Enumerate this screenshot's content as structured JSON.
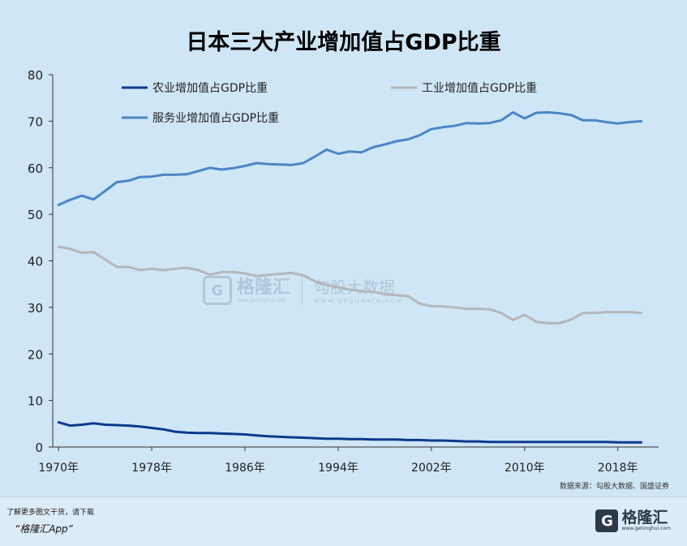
{
  "chart_data": {
    "type": "line",
    "title": "日本三大产业增加值占GDP比重",
    "xlabel": "",
    "ylabel": "",
    "x": [
      1970,
      1971,
      1972,
      1973,
      1974,
      1975,
      1976,
      1977,
      1978,
      1979,
      1980,
      1981,
      1982,
      1983,
      1984,
      1985,
      1986,
      1987,
      1988,
      1989,
      1990,
      1991,
      1992,
      1993,
      1994,
      1995,
      1996,
      1997,
      1998,
      1999,
      2000,
      2001,
      2002,
      2003,
      2004,
      2005,
      2006,
      2007,
      2008,
      2009,
      2010,
      2011,
      2012,
      2013,
      2014,
      2015,
      2016,
      2017,
      2018,
      2019,
      2020
    ],
    "x_ticks": [
      "1970年",
      "1978年",
      "1986年",
      "1994年",
      "2002年",
      "2010年",
      "2018年"
    ],
    "x_tick_values": [
      1970,
      1978,
      1986,
      1994,
      2002,
      2010,
      2018
    ],
    "xlim": [
      1969.5,
      2021.5
    ],
    "ylim": [
      0,
      80
    ],
    "y_ticks": [
      "0",
      "10",
      "20",
      "30",
      "40",
      "50",
      "60",
      "70",
      "80"
    ],
    "y_tick_values": [
      0,
      10,
      20,
      30,
      40,
      50,
      60,
      70,
      80
    ],
    "grid": false,
    "legend_position": "top",
    "series": [
      {
        "name": "农业增加值占GDP比重",
        "color": "#0a3a8c",
        "values": [
          5.3,
          4.6,
          4.8,
          5.1,
          4.8,
          4.7,
          4.6,
          4.4,
          4.1,
          3.8,
          3.3,
          3.1,
          3.0,
          3.0,
          2.9,
          2.8,
          2.7,
          2.5,
          2.3,
          2.2,
          2.1,
          2.0,
          1.9,
          1.8,
          1.8,
          1.7,
          1.7,
          1.6,
          1.6,
          1.6,
          1.5,
          1.5,
          1.4,
          1.4,
          1.3,
          1.2,
          1.2,
          1.1,
          1.1,
          1.1,
          1.1,
          1.1,
          1.1,
          1.1,
          1.1,
          1.1,
          1.1,
          1.1,
          1.0,
          1.0,
          1.0
        ]
      },
      {
        "name": "工业增加值占GDP比重",
        "color": "#b4b7bb",
        "values": [
          43.0,
          42.6,
          41.7,
          41.9,
          40.3,
          38.7,
          38.7,
          38.0,
          38.3,
          38.0,
          38.3,
          38.5,
          38.0,
          37.0,
          37.6,
          37.6,
          37.3,
          36.7,
          37.0,
          37.2,
          37.4,
          36.9,
          35.6,
          34.8,
          34.3,
          33.8,
          33.5,
          33.4,
          32.8,
          32.6,
          32.4,
          30.8,
          30.3,
          30.2,
          30.0,
          29.7,
          29.7,
          29.6,
          28.8,
          27.3,
          28.4,
          26.9,
          26.6,
          26.6,
          27.4,
          28.8,
          28.8,
          29.0,
          29.0,
          29.0,
          28.8
        ]
      },
      {
        "name": "服务业增加值占GDP比重",
        "color": "#4a86c6",
        "values": [
          52.0,
          53.1,
          54.0,
          53.2,
          55.0,
          56.9,
          57.2,
          58.0,
          58.1,
          58.5,
          58.5,
          58.6,
          59.3,
          60.0,
          59.6,
          59.9,
          60.4,
          61.0,
          60.8,
          60.7,
          60.6,
          61.0,
          62.4,
          63.9,
          63.0,
          63.5,
          63.3,
          64.4,
          65.0,
          65.7,
          66.1,
          67.0,
          68.3,
          68.7,
          69.0,
          69.6,
          69.5,
          69.6,
          70.2,
          71.9,
          70.6,
          71.8,
          71.9,
          71.7,
          71.3,
          70.2,
          70.2,
          69.8,
          69.5,
          69.8,
          70.0
        ]
      }
    ]
  },
  "source_text": "数据来源：勾股大数据、国盛证券",
  "watermark": {
    "mark": "G",
    "name": "格隆汇",
    "url1": "www.gelonghui.com",
    "brand": "勾股大数据",
    "url2": "www.gogudata.com"
  },
  "footer": {
    "line1": "了解更多图文干货，请下载",
    "line2": "“格隆汇App”",
    "logo_mark": "G",
    "logo_name": "格隆汇",
    "logo_url": "www.gelonghui.com"
  }
}
